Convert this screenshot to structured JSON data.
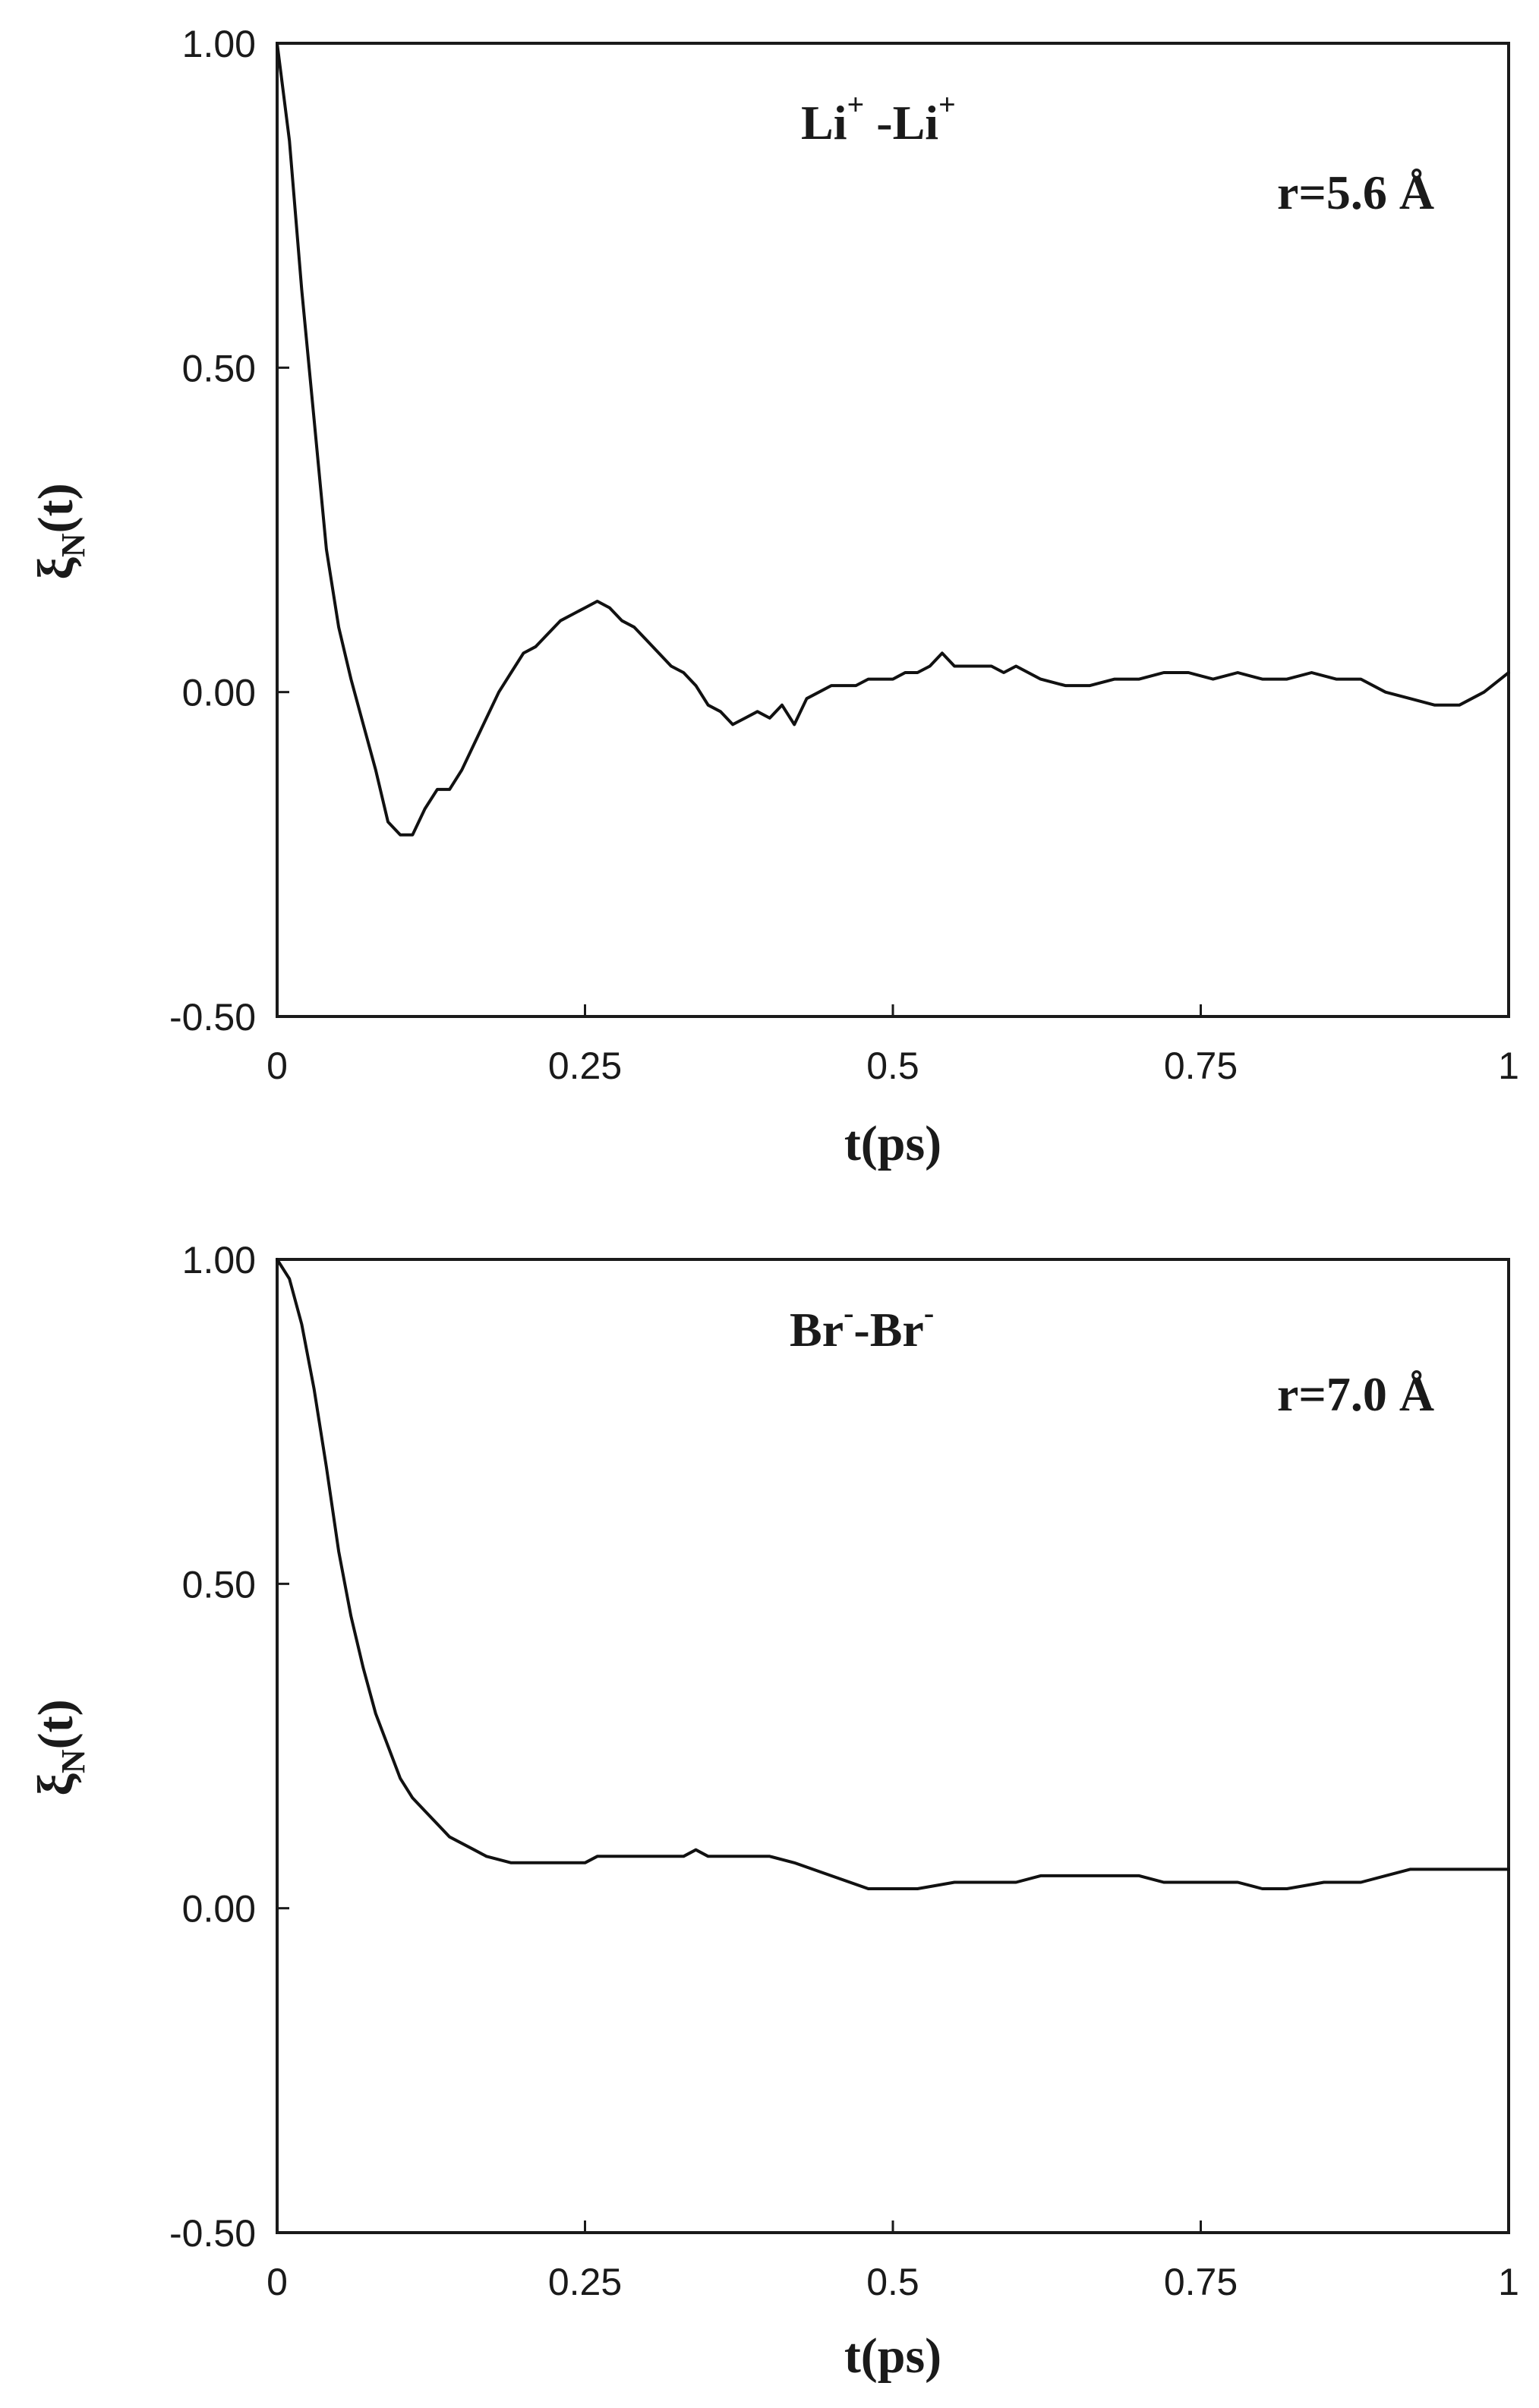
{
  "chart_data": [
    {
      "type": "line",
      "panel": "top",
      "annotation": {
        "base": "Li",
        "sup": "+",
        "sep": " -",
        "base2": "Li",
        "sup2": "+"
      },
      "distance_label": "r=5.6 Å",
      "xlabel": "t(ps)",
      "ylabel_main": "ξ",
      "ylabel_sub": "N",
      "ylabel_tail": "(t)",
      "xlim": [
        0,
        1
      ],
      "ylim": [
        -0.5,
        1.0
      ],
      "xticks": [
        {
          "value": 0,
          "label": "0"
        },
        {
          "value": 0.25,
          "label": "0.25"
        },
        {
          "value": 0.5,
          "label": "0.5"
        },
        {
          "value": 0.75,
          "label": "0.75"
        },
        {
          "value": 1,
          "label": "1"
        }
      ],
      "yticks": [
        {
          "value": 1.0,
          "label": "1.00"
        },
        {
          "value": 0.5,
          "label": "0.50"
        },
        {
          "value": 0.0,
          "label": "0.00"
        },
        {
          "value": -0.5,
          "label": "-0.50"
        }
      ],
      "grid": false,
      "series": [
        {
          "x": [
            0,
            0.01,
            0.02,
            0.03,
            0.04,
            0.05,
            0.06,
            0.07,
            0.08,
            0.09,
            0.1,
            0.11,
            0.12,
            0.13,
            0.14,
            0.15,
            0.16,
            0.17,
            0.18,
            0.19,
            0.2,
            0.21,
            0.22,
            0.23,
            0.24,
            0.25,
            0.26,
            0.27,
            0.28,
            0.29,
            0.3,
            0.31,
            0.32,
            0.33,
            0.34,
            0.35,
            0.36,
            0.37,
            0.38,
            0.39,
            0.4,
            0.41,
            0.42,
            0.43,
            0.44,
            0.45,
            0.46,
            0.47,
            0.48,
            0.49,
            0.5,
            0.51,
            0.52,
            0.53,
            0.54,
            0.55,
            0.56,
            0.57,
            0.58,
            0.59,
            0.6,
            0.62,
            0.64,
            0.66,
            0.68,
            0.7,
            0.72,
            0.74,
            0.76,
            0.78,
            0.8,
            0.82,
            0.84,
            0.86,
            0.88,
            0.9,
            0.92,
            0.94,
            0.96,
            0.98,
            1.0
          ],
          "y": [
            1.0,
            0.85,
            0.62,
            0.42,
            0.22,
            0.1,
            0.02,
            -0.05,
            -0.12,
            -0.2,
            -0.22,
            -0.22,
            -0.18,
            -0.15,
            -0.15,
            -0.12,
            -0.08,
            -0.04,
            0.0,
            0.03,
            0.06,
            0.07,
            0.09,
            0.11,
            0.12,
            0.13,
            0.14,
            0.13,
            0.11,
            0.1,
            0.08,
            0.06,
            0.04,
            0.03,
            0.01,
            -0.02,
            -0.03,
            -0.05,
            -0.04,
            -0.03,
            -0.04,
            -0.02,
            -0.05,
            -0.01,
            0.0,
            0.01,
            0.01,
            0.01,
            0.02,
            0.02,
            0.02,
            0.03,
            0.03,
            0.04,
            0.06,
            0.04,
            0.04,
            0.04,
            0.04,
            0.03,
            0.04,
            0.02,
            0.01,
            0.01,
            0.02,
            0.02,
            0.03,
            0.03,
            0.02,
            0.03,
            0.02,
            0.02,
            0.03,
            0.02,
            0.02,
            0.0,
            -0.01,
            -0.02,
            -0.02,
            0.0,
            0.03
          ]
        }
      ]
    },
    {
      "type": "line",
      "panel": "bottom",
      "annotation": {
        "base": "Br",
        "sup": "-",
        "sep": "-",
        "base2": "Br",
        "sup2": "-"
      },
      "distance_label": "r=7.0 Å",
      "xlabel": "t(ps)",
      "ylabel_main": "ξ",
      "ylabel_sub": "N",
      "ylabel_tail": "(t)",
      "xlim": [
        0,
        1
      ],
      "ylim": [
        -0.5,
        1.0
      ],
      "xticks": [
        {
          "value": 0,
          "label": "0"
        },
        {
          "value": 0.25,
          "label": "0.25"
        },
        {
          "value": 0.5,
          "label": "0.5"
        },
        {
          "value": 0.75,
          "label": "0.75"
        },
        {
          "value": 1,
          "label": "1"
        }
      ],
      "yticks": [
        {
          "value": 1.0,
          "label": "1.00"
        },
        {
          "value": 0.5,
          "label": "0.50"
        },
        {
          "value": 0.0,
          "label": "0.00"
        },
        {
          "value": -0.5,
          "label": "-0.50"
        }
      ],
      "grid": false,
      "series": [
        {
          "x": [
            0,
            0.01,
            0.02,
            0.03,
            0.04,
            0.05,
            0.06,
            0.07,
            0.08,
            0.09,
            0.1,
            0.11,
            0.12,
            0.13,
            0.14,
            0.15,
            0.16,
            0.17,
            0.18,
            0.19,
            0.2,
            0.25,
            0.26,
            0.3,
            0.33,
            0.34,
            0.35,
            0.4,
            0.42,
            0.45,
            0.48,
            0.5,
            0.52,
            0.55,
            0.6,
            0.62,
            0.65,
            0.7,
            0.72,
            0.75,
            0.78,
            0.8,
            0.82,
            0.85,
            0.88,
            0.9,
            0.92,
            0.95,
            1.0
          ],
          "y": [
            1.0,
            0.97,
            0.9,
            0.8,
            0.68,
            0.55,
            0.45,
            0.37,
            0.3,
            0.25,
            0.2,
            0.17,
            0.15,
            0.13,
            0.11,
            0.1,
            0.09,
            0.08,
            0.075,
            0.07,
            0.07,
            0.07,
            0.08,
            0.08,
            0.08,
            0.09,
            0.08,
            0.08,
            0.07,
            0.05,
            0.03,
            0.03,
            0.03,
            0.04,
            0.04,
            0.05,
            0.05,
            0.05,
            0.04,
            0.04,
            0.04,
            0.03,
            0.03,
            0.04,
            0.04,
            0.05,
            0.06,
            0.06,
            0.06
          ]
        }
      ]
    }
  ]
}
